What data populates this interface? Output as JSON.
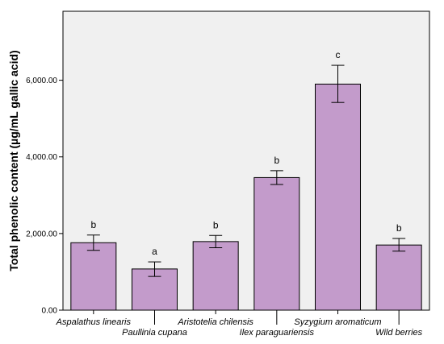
{
  "chart_data": {
    "type": "bar",
    "title": "",
    "xlabel": "",
    "ylabel": "Total phenolic content (µg/mL gallic acid)",
    "ylim": [
      0,
      7800
    ],
    "yticks": [
      0,
      2000,
      4000,
      6000
    ],
    "ytick_labels": [
      "0.00",
      "2,000.00",
      "4,000.00",
      "6,000.00"
    ],
    "grid": false,
    "categories": [
      "Aspalathus linearis",
      "Paullinia cupana",
      "Aristotelia chilensis",
      "Ilex paraguariensis",
      "Syzygium aromaticum",
      "Wild berries"
    ],
    "values": [
      1760,
      1075,
      1790,
      3460,
      5900,
      1700
    ],
    "error_low": [
      1560,
      880,
      1630,
      3280,
      5420,
      1540
    ],
    "error_high": [
      1960,
      1260,
      1950,
      3640,
      6390,
      1870
    ],
    "significance_labels": [
      "b",
      "a",
      "b",
      "b",
      "c",
      "b"
    ],
    "colors": {
      "bar_fill": "#c39bcb",
      "bar_stroke": "#000000",
      "plot_background": "#f0f0f0"
    }
  }
}
